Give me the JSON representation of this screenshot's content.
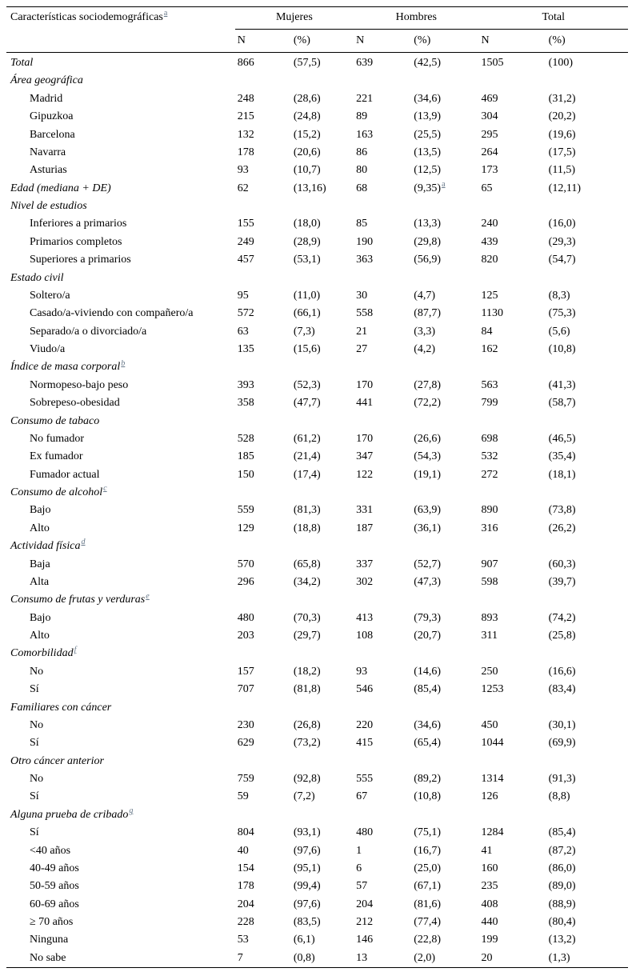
{
  "colors": {
    "text": "#000000",
    "border": "#000000",
    "footnote_link": "#667788"
  },
  "table": {
    "header": {
      "title": "Características sociodemográficas",
      "title_sup": "a",
      "groups": [
        "Mujeres",
        "Hombres",
        "Total"
      ],
      "subheaders": [
        "N",
        "(%)",
        "N",
        "(%)",
        "N",
        "(%)"
      ]
    },
    "rows": [
      {
        "label": "Total",
        "italic": true,
        "indent": 0,
        "values": [
          "866",
          "(57,5)",
          "639",
          "(42,5)",
          "1505",
          "(100)"
        ]
      },
      {
        "label": "Área geográfica",
        "italic": true,
        "indent": 0,
        "values": []
      },
      {
        "label": "Madrid",
        "indent": 1,
        "values": [
          "248",
          "(28,6)",
          "221",
          "(34,6)",
          "469",
          "(31,2)"
        ]
      },
      {
        "label": "Gipuzkoa",
        "indent": 1,
        "values": [
          "215",
          "(24,8)",
          "89",
          "(13,9)",
          "304",
          "(20,2)"
        ]
      },
      {
        "label": "Barcelona",
        "indent": 1,
        "values": [
          "132",
          "(15,2)",
          "163",
          "(25,5)",
          "295",
          "(19,6)"
        ]
      },
      {
        "label": "Navarra",
        "indent": 1,
        "values": [
          "178",
          "(20,6)",
          "86",
          "(13,5)",
          "264",
          "(17,5)"
        ]
      },
      {
        "label": "Asturias",
        "indent": 1,
        "values": [
          "93",
          "(10,7)",
          "80",
          "(12,5)",
          "173",
          "(11,5)"
        ]
      },
      {
        "label": "Edad (mediana + DE)",
        "italic": true,
        "indent": 0,
        "values": [
          "62",
          "(13,16)",
          "68",
          "(9,35)",
          "65",
          "(12,11)"
        ],
        "value_sup": {
          "index": 3,
          "sup": "a"
        }
      },
      {
        "label": "Nivel de estudios",
        "italic": true,
        "indent": 0,
        "values": []
      },
      {
        "label": "Inferiores a primarios",
        "indent": 1,
        "values": [
          "155",
          "(18,0)",
          "85",
          "(13,3)",
          "240",
          "(16,0)"
        ]
      },
      {
        "label": "Primarios completos",
        "indent": 1,
        "values": [
          "249",
          "(28,9)",
          "190",
          "(29,8)",
          "439",
          "(29,3)"
        ]
      },
      {
        "label": "Superiores a primarios",
        "indent": 1,
        "values": [
          "457",
          "(53,1)",
          "363",
          "(56,9)",
          "820",
          "(54,7)"
        ]
      },
      {
        "label": "Estado civil",
        "italic": true,
        "indent": 0,
        "values": []
      },
      {
        "label": "Soltero/a",
        "indent": 1,
        "values": [
          "95",
          "(11,0)",
          "30",
          "(4,7)",
          "125",
          "(8,3)"
        ]
      },
      {
        "label": "Casado/a-viviendo con compañero/a",
        "indent": 1,
        "values": [
          "572",
          "(66,1)",
          "558",
          "(87,7)",
          "1130",
          "(75,3)"
        ]
      },
      {
        "label": "Separado/a o divorciado/a",
        "indent": 1,
        "values": [
          "63",
          "(7,3)",
          "21",
          "(3,3)",
          "84",
          "(5,6)"
        ]
      },
      {
        "label": "Viudo/a",
        "indent": 1,
        "values": [
          "135",
          "(15,6)",
          "27",
          "(4,2)",
          "162",
          "(10,8)"
        ]
      },
      {
        "label": "Índice de masa corporal",
        "sup": "b",
        "italic": true,
        "indent": 0,
        "values": []
      },
      {
        "label": "Normopeso-bajo peso",
        "indent": 1,
        "values": [
          "393",
          "(52,3)",
          "170",
          "(27,8)",
          "563",
          "(41,3)"
        ]
      },
      {
        "label": "Sobrepeso-obesidad",
        "indent": 1,
        "values": [
          "358",
          "(47,7)",
          "441",
          "(72,2)",
          "799",
          "(58,7)"
        ]
      },
      {
        "label": "Consumo de tabaco",
        "italic": true,
        "indent": 0,
        "values": []
      },
      {
        "label": "No fumador",
        "indent": 1,
        "values": [
          "528",
          "(61,2)",
          "170",
          "(26,6)",
          "698",
          "(46,5)"
        ]
      },
      {
        "label": "Ex fumador",
        "indent": 1,
        "values": [
          "185",
          "(21,4)",
          "347",
          "(54,3)",
          "532",
          "(35,4)"
        ]
      },
      {
        "label": "Fumador actual",
        "indent": 1,
        "values": [
          "150",
          "(17,4)",
          "122",
          "(19,1)",
          "272",
          "(18,1)"
        ]
      },
      {
        "label": "Consumo de alcohol",
        "sup": "c",
        "italic": true,
        "indent": 0,
        "values": []
      },
      {
        "label": "Bajo",
        "indent": 1,
        "values": [
          "559",
          "(81,3)",
          "331",
          "(63,9)",
          "890",
          "(73,8)"
        ]
      },
      {
        "label": "Alto",
        "indent": 1,
        "values": [
          "129",
          "(18,8)",
          "187",
          "(36,1)",
          "316",
          "(26,2)"
        ]
      },
      {
        "label": "Actividad física",
        "sup": "d",
        "italic": true,
        "indent": 0,
        "values": []
      },
      {
        "label": "Baja",
        "indent": 1,
        "values": [
          "570",
          "(65,8)",
          "337",
          "(52,7)",
          "907",
          "(60,3)"
        ]
      },
      {
        "label": "Alta",
        "indent": 1,
        "values": [
          "296",
          "(34,2)",
          "302",
          "(47,3)",
          "598",
          "(39,7)"
        ]
      },
      {
        "label": "Consumo de frutas y verduras",
        "sup": "e",
        "italic": true,
        "indent": 0,
        "values": []
      },
      {
        "label": "Bajo",
        "indent": 1,
        "values": [
          "480",
          "(70,3)",
          "413",
          "(79,3)",
          "893",
          "(74,2)"
        ]
      },
      {
        "label": "Alto",
        "indent": 1,
        "values": [
          "203",
          "(29,7)",
          "108",
          "(20,7)",
          "311",
          "(25,8)"
        ]
      },
      {
        "label": "Comorbilidad",
        "sup": "f",
        "italic": true,
        "indent": 0,
        "values": []
      },
      {
        "label": "No",
        "indent": 1,
        "values": [
          "157",
          "(18,2)",
          "93",
          "(14,6)",
          "250",
          "(16,6)"
        ]
      },
      {
        "label": "Sí",
        "indent": 1,
        "values": [
          "707",
          "(81,8)",
          "546",
          "(85,4)",
          "1253",
          "(83,4)"
        ]
      },
      {
        "label": "Familiares con cáncer",
        "italic": true,
        "indent": 0,
        "values": []
      },
      {
        "label": "No",
        "indent": 1,
        "values": [
          "230",
          "(26,8)",
          "220",
          "(34,6)",
          "450",
          "(30,1)"
        ]
      },
      {
        "label": "Sí",
        "indent": 1,
        "values": [
          "629",
          "(73,2)",
          "415",
          "(65,4)",
          "1044",
          "(69,9)"
        ]
      },
      {
        "label": "Otro cáncer anterior",
        "italic": true,
        "indent": 0,
        "values": []
      },
      {
        "label": "No",
        "indent": 1,
        "values": [
          "759",
          "(92,8)",
          "555",
          "(89,2)",
          "1314",
          "(91,3)"
        ]
      },
      {
        "label": "Sí",
        "indent": 1,
        "values": [
          "59",
          "(7,2)",
          "67",
          "(10,8)",
          "126",
          "(8,8)"
        ]
      },
      {
        "label": "Alguna prueba de cribado",
        "sup": "g",
        "italic": true,
        "indent": 0,
        "values": []
      },
      {
        "label": "Sí",
        "indent": 1,
        "values": [
          "804",
          "(93,1)",
          "480",
          "(75,1)",
          "1284",
          "(85,4)"
        ]
      },
      {
        "label": "<40 años",
        "indent": 1,
        "values": [
          "40",
          "(97,6)",
          "1",
          "(16,7)",
          "41",
          "(87,2)"
        ]
      },
      {
        "label": "40-49 años",
        "indent": 1,
        "values": [
          "154",
          "(95,1)",
          "6",
          "(25,0)",
          "160",
          "(86,0)"
        ]
      },
      {
        "label": "50-59 años",
        "indent": 1,
        "values": [
          "178",
          "(99,4)",
          "57",
          "(67,1)",
          "235",
          "(89,0)"
        ]
      },
      {
        "label": "60-69 años",
        "indent": 1,
        "values": [
          "204",
          "(97,6)",
          "204",
          "(81,6)",
          "408",
          "(88,9)"
        ]
      },
      {
        "label": "≥ 70 años",
        "indent": 1,
        "values": [
          "228",
          "(83,5)",
          "212",
          "(77,4)",
          "440",
          "(80,4)"
        ]
      },
      {
        "label": "Ninguna",
        "indent": 1,
        "values": [
          "53",
          "(6,1)",
          "146",
          "(22,8)",
          "199",
          "(13,2)"
        ]
      },
      {
        "label": "No sabe",
        "indent": 1,
        "values": [
          "7",
          "(0,8)",
          "13",
          "(2,0)",
          "20",
          "(1,3)"
        ]
      }
    ]
  }
}
